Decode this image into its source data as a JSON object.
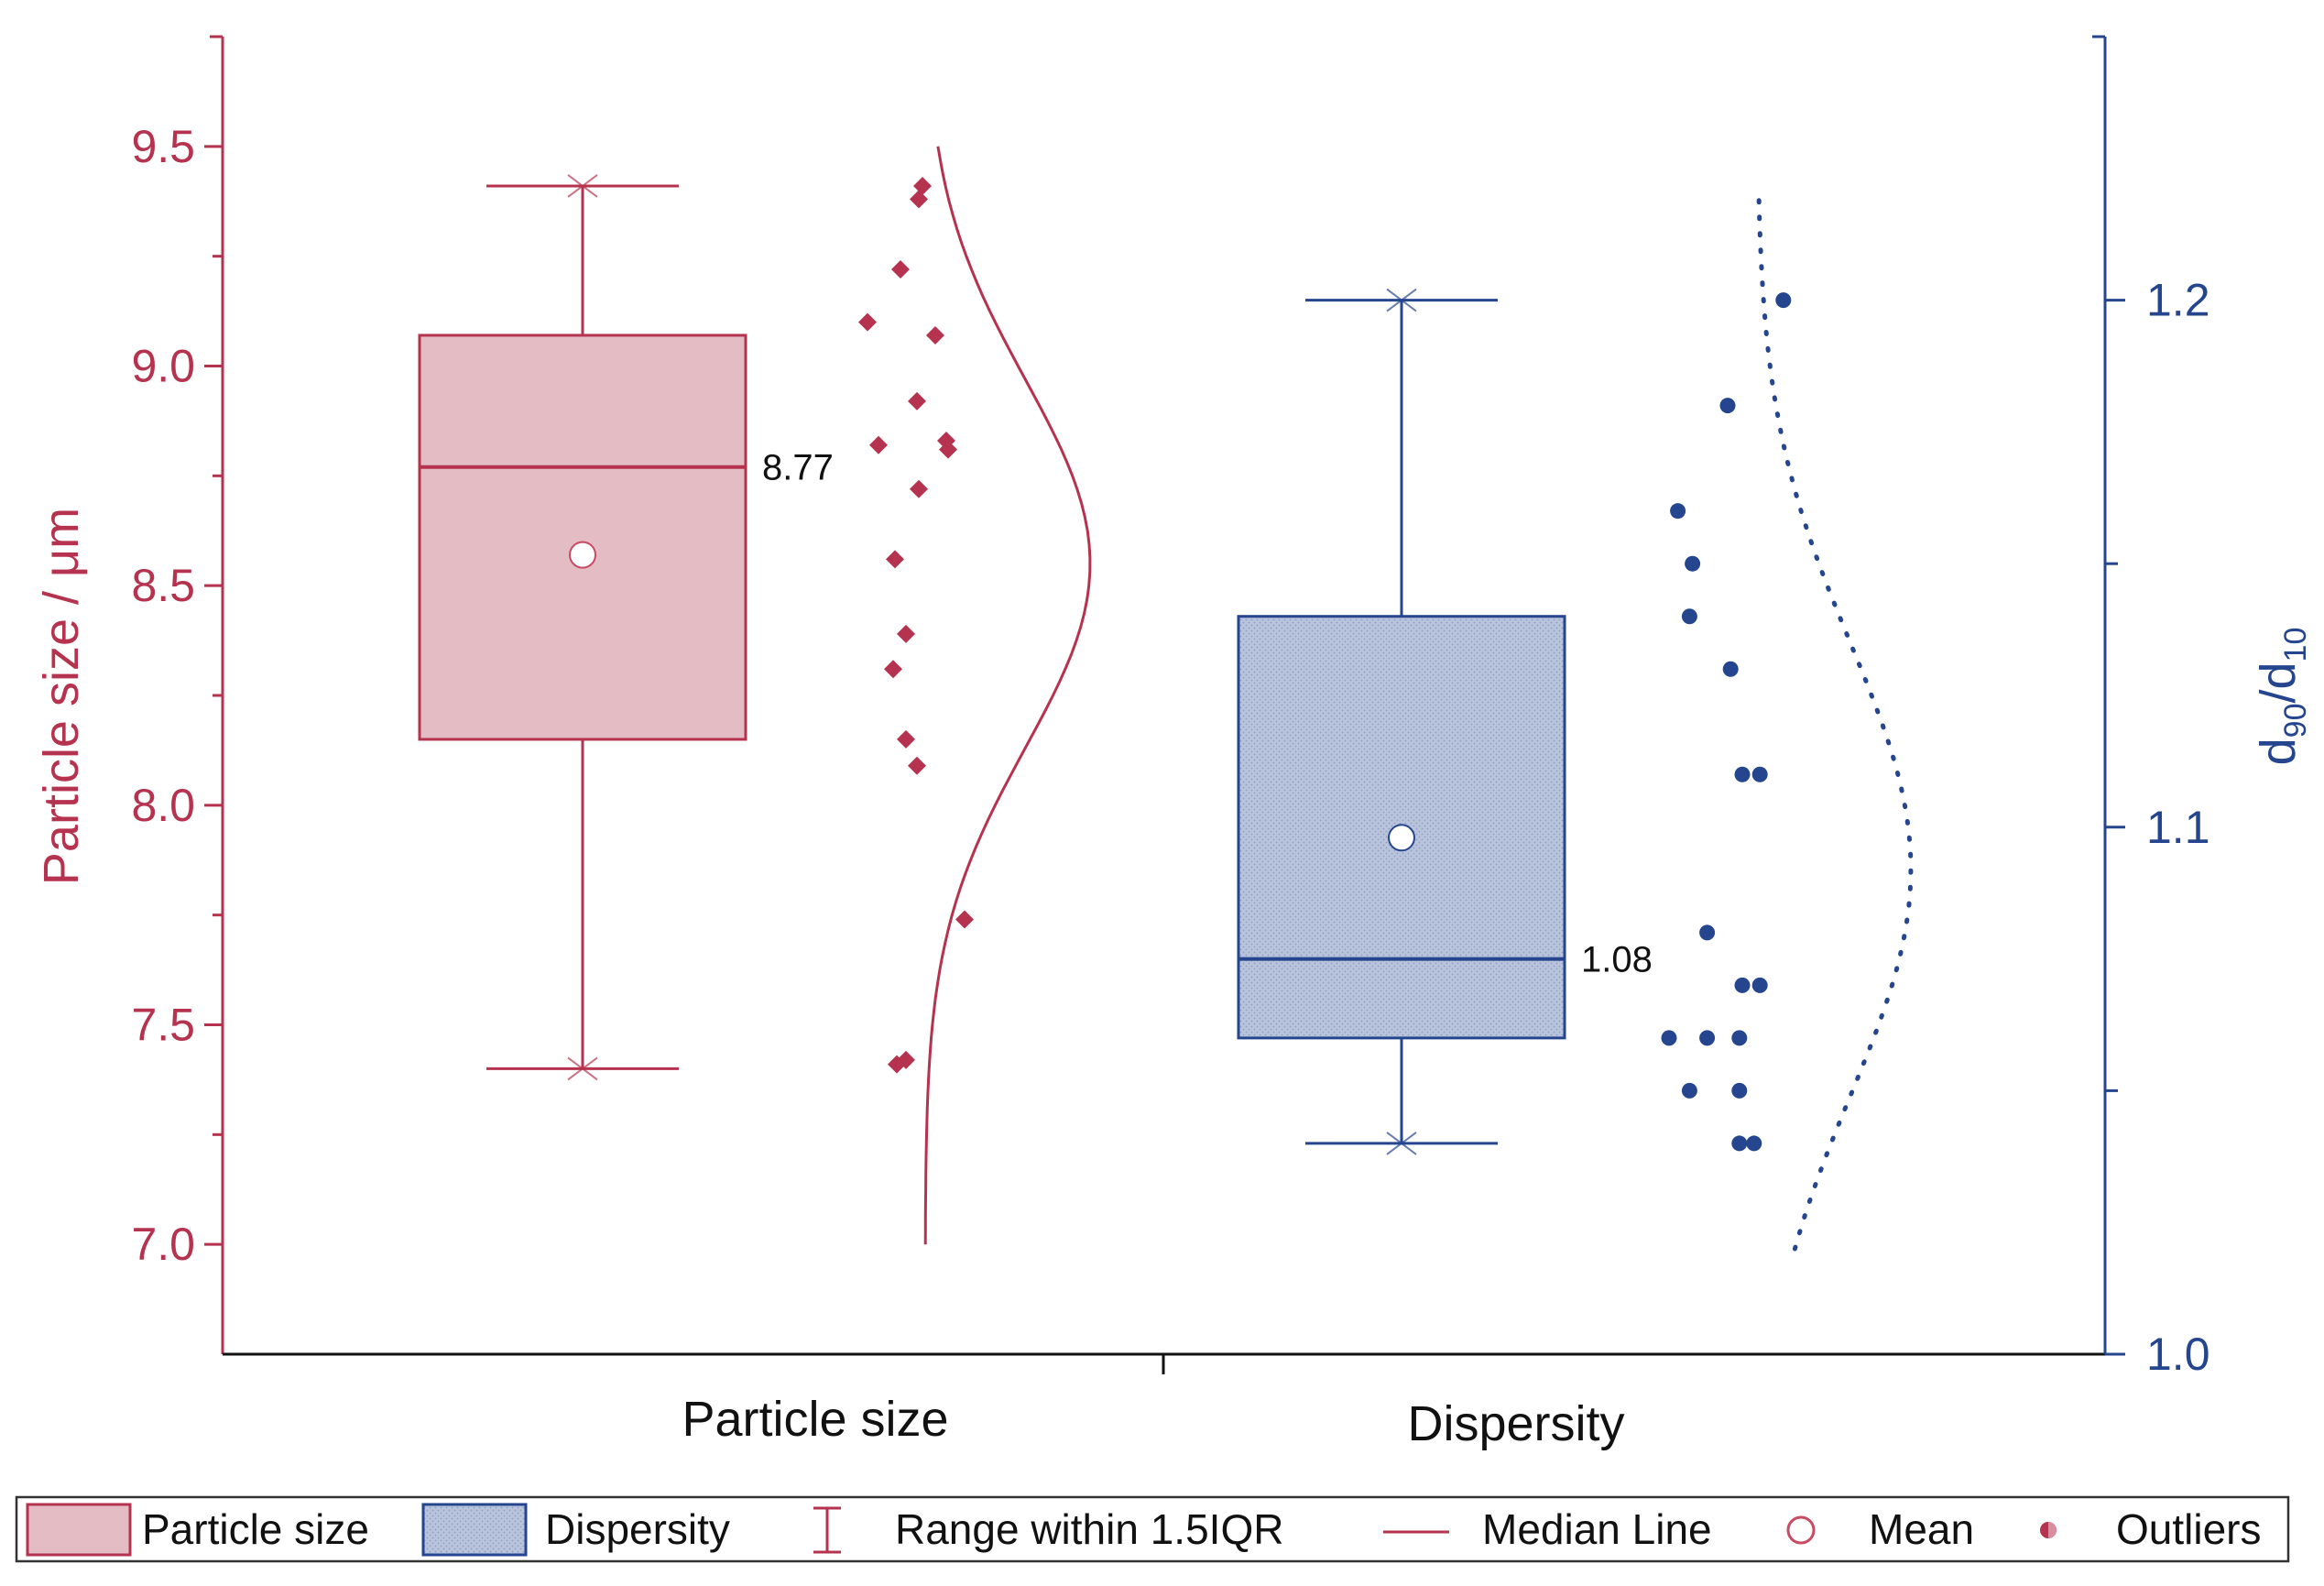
{
  "chart_data": {
    "type": "box",
    "categories": [
      "Particle size",
      "Dispersity"
    ],
    "colors": {
      "particle": "#b5334f",
      "particle_fill": "#e3bcc4",
      "dispersity": "#25468f",
      "dispersity_fill": "#b8c3dc"
    },
    "left_axis": {
      "label": "Particle size / μm",
      "ylim": [
        6.75,
        9.75
      ],
      "ticks": [
        7.0,
        7.5,
        8.0,
        8.5,
        9.0,
        9.5
      ],
      "tick_labels": [
        "7.0",
        "7.5",
        "8.0",
        "8.5",
        "9.0",
        "9.5"
      ]
    },
    "right_axis": {
      "label_main": "d",
      "label_sub1": "90",
      "label_slash": "/d",
      "label_sub2": "10",
      "ylim": [
        1.0,
        1.25
      ],
      "ticks": [
        1.0,
        1.05,
        1.1,
        1.15,
        1.2
      ],
      "labeled_ticks": [
        1.0,
        1.1,
        1.2
      ],
      "tick_labels": [
        "1.0",
        "1.1",
        "1.2"
      ]
    },
    "series": [
      {
        "name": "Particle size",
        "axis": "left",
        "whisker_low": 7.4,
        "q1": 8.15,
        "median": 8.77,
        "q3": 9.07,
        "whisker_high": 9.41,
        "mean": 8.57,
        "median_label": "8.77",
        "points": [
          {
            "x": 0.55,
            "y": 9.41
          },
          {
            "x": 0.45,
            "y": 9.38
          },
          {
            "x": -0.05,
            "y": 9.22
          },
          {
            "x": -0.95,
            "y": 9.1
          },
          {
            "x": 0.9,
            "y": 9.07
          },
          {
            "x": 0.4,
            "y": 8.92
          },
          {
            "x": -0.65,
            "y": 8.82
          },
          {
            "x": 1.2,
            "y": 8.83
          },
          {
            "x": 1.25,
            "y": 8.81
          },
          {
            "x": 0.45,
            "y": 8.72
          },
          {
            "x": -0.2,
            "y": 8.56
          },
          {
            "x": 0.1,
            "y": 8.39
          },
          {
            "x": -0.25,
            "y": 8.31
          },
          {
            "x": 0.1,
            "y": 8.15
          },
          {
            "x": 0.4,
            "y": 8.09
          },
          {
            "x": 1.7,
            "y": 7.74
          },
          {
            "x": -0.15,
            "y": 7.41
          },
          {
            "x": 0.1,
            "y": 7.42
          }
        ],
        "distribution": {
          "mean": 8.55,
          "sd": 0.42,
          "range": [
            7.0,
            9.5
          ]
        }
      },
      {
        "name": "Dispersity",
        "axis": "right",
        "whisker_low": 1.04,
        "q1": 1.06,
        "median": 1.075,
        "q3": 1.14,
        "whisker_high": 1.2,
        "mean": 1.098,
        "median_label": "1.08",
        "points": [
          {
            "x": 2.4,
            "y": 1.2
          },
          {
            "x": 0.5,
            "y": 1.18
          },
          {
            "x": -1.2,
            "y": 1.16
          },
          {
            "x": -0.7,
            "y": 1.15
          },
          {
            "x": -0.8,
            "y": 1.14
          },
          {
            "x": 0.6,
            "y": 1.13
          },
          {
            "x": 1.0,
            "y": 1.11
          },
          {
            "x": 1.6,
            "y": 1.11
          },
          {
            "x": -0.2,
            "y": 1.08
          },
          {
            "x": 1.0,
            "y": 1.07
          },
          {
            "x": 1.6,
            "y": 1.07
          },
          {
            "x": -1.5,
            "y": 1.06
          },
          {
            "x": -0.2,
            "y": 1.06
          },
          {
            "x": 0.9,
            "y": 1.06
          },
          {
            "x": -0.8,
            "y": 1.05
          },
          {
            "x": 0.9,
            "y": 1.05
          },
          {
            "x": 0.9,
            "y": 1.04
          },
          {
            "x": 1.4,
            "y": 1.04
          }
        ],
        "distribution": {
          "mean": 1.092,
          "sd": 0.043,
          "range": [
            1.02,
            1.22
          ]
        }
      }
    ],
    "legend": {
      "position": "bottom",
      "items": [
        {
          "key": "box-particle",
          "label": "Particle size"
        },
        {
          "key": "box-dispersity",
          "label": "Dispersity"
        },
        {
          "key": "range",
          "label": "Range within 1.5IQR"
        },
        {
          "key": "median",
          "label": "Median Line"
        },
        {
          "key": "mean",
          "label": "Mean"
        },
        {
          "key": "outliers",
          "label": "Outliers"
        }
      ]
    }
  }
}
